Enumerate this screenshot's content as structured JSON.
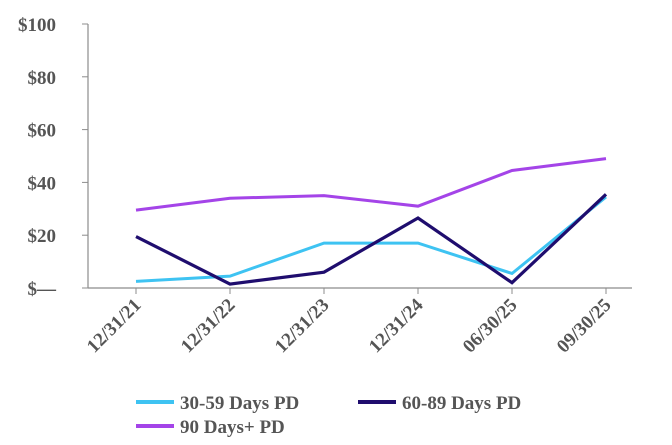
{
  "chart_data": {
    "type": "line",
    "title": "",
    "xlabel": "",
    "ylabel": "",
    "categories": [
      "12/31/21",
      "12/31/22",
      "12/31/23",
      "12/31/24",
      "06/30/25",
      "09/30/25"
    ],
    "ylim": [
      0,
      100
    ],
    "yticks": [
      {
        "value": 100,
        "label": "$100"
      },
      {
        "value": 80,
        "label": "$80"
      },
      {
        "value": 60,
        "label": "$60"
      },
      {
        "value": 40,
        "label": "$40"
      },
      {
        "value": 20,
        "label": "$20"
      },
      {
        "value": 0,
        "label": "$—"
      }
    ],
    "grid": false,
    "legend_position": "bottom",
    "series": [
      {
        "name": "30-59 Days PD",
        "color": "#3ec3f2",
        "values": [
          2.5,
          4.5,
          17,
          17,
          5.5,
          34.5
        ]
      },
      {
        "name": "60-89 Days PD",
        "color": "#1f0d6e",
        "values": [
          19.5,
          1.5,
          6,
          26.5,
          2,
          35.5
        ]
      },
      {
        "name": "90 Days+ PD",
        "color": "#a444e8",
        "values": [
          29.5,
          34,
          35,
          31,
          44.5,
          49
        ]
      }
    ]
  }
}
